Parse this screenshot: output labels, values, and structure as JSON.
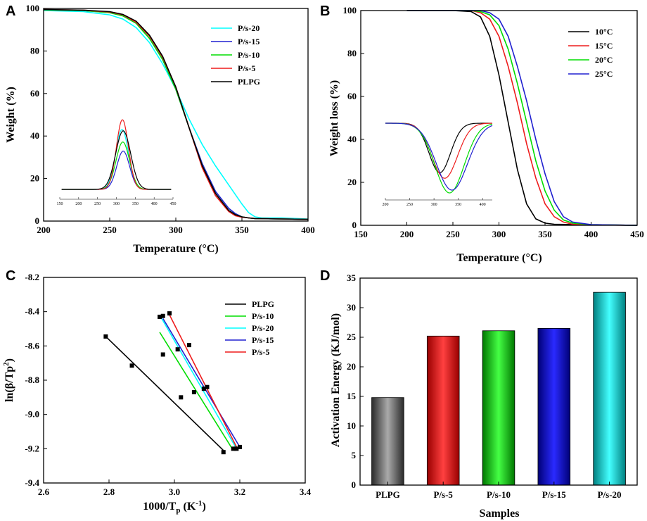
{
  "colors": {
    "cyan": "#00ffff",
    "blue": "#2020d0",
    "green": "#00dd00",
    "red": "#ee1c1c",
    "black": "#000000"
  },
  "chart_data": [
    {
      "panel": "A",
      "type": "line",
      "xlabel": "Temperature (°C)",
      "ylabel": "Weight  (%)",
      "xlim": [
        200,
        400
      ],
      "ylim": [
        0,
        100
      ],
      "xticks": [
        200,
        250,
        300,
        350,
        400
      ],
      "yticks": [
        0,
        20,
        40,
        60,
        80,
        100
      ],
      "legend": "top-right",
      "series": [
        {
          "name": "P/s-20",
          "color": "#00ffff",
          "x": [
            200,
            230,
            250,
            260,
            270,
            280,
            290,
            300,
            310,
            320,
            330,
            340,
            350,
            355,
            360,
            365,
            380,
            400
          ],
          "y": [
            99,
            98.5,
            97,
            95,
            91,
            84,
            74,
            62,
            48,
            36,
            26,
            17,
            8,
            4,
            2,
            1.5,
            1.5,
            1
          ]
        },
        {
          "name": "P/s-15",
          "color": "#2020d0",
          "x": [
            200,
            230,
            250,
            260,
            270,
            280,
            290,
            300,
            310,
            320,
            330,
            340,
            345,
            350,
            355,
            360,
            380,
            400
          ],
          "y": [
            99.3,
            99,
            98,
            96.5,
            93,
            86,
            76,
            62,
            44,
            27,
            14,
            6,
            3.5,
            2,
            1.5,
            1.2,
            1,
            0.8
          ]
        },
        {
          "name": "P/s-10",
          "color": "#00dd00",
          "x": [
            200,
            230,
            250,
            260,
            270,
            280,
            290,
            300,
            310,
            320,
            330,
            340,
            345,
            350,
            355,
            360,
            380,
            400
          ],
          "y": [
            99.3,
            99,
            98,
            96.5,
            93,
            86,
            76,
            62,
            44,
            26,
            13,
            5,
            3,
            2,
            1.5,
            1.2,
            1,
            0.8
          ]
        },
        {
          "name": "P/s-5",
          "color": "#ee1c1c",
          "x": [
            200,
            230,
            250,
            260,
            270,
            280,
            290,
            300,
            310,
            320,
            330,
            340,
            345,
            350,
            355,
            360,
            380,
            400
          ],
          "y": [
            99.5,
            99.2,
            98.3,
            97,
            93.5,
            87,
            77,
            63,
            44,
            25,
            12,
            4.5,
            2.5,
            1.8,
            1.5,
            1.2,
            1,
            0.8
          ]
        },
        {
          "name": "PLPG",
          "color": "#000000",
          "x": [
            200,
            230,
            250,
            260,
            270,
            280,
            290,
            300,
            310,
            320,
            330,
            340,
            345,
            350,
            355,
            360,
            380,
            400
          ],
          "y": [
            99.5,
            99.2,
            98.5,
            97.2,
            94,
            87.5,
            77.5,
            63,
            44,
            26,
            13,
            5,
            3,
            2,
            1.5,
            1.2,
            1,
            0.8
          ]
        }
      ],
      "inset": {
        "xlim": [
          150,
          450
        ],
        "xticks": [
          150,
          200,
          250,
          300,
          350,
          400,
          450
        ],
        "series": [
          {
            "name": "P/s-20",
            "color": "#00ffff",
            "center": 315,
            "width": 17,
            "peak": 0.86
          },
          {
            "name": "P/s-15",
            "color": "#2020d0",
            "center": 318,
            "width": 17,
            "peak": 0.55
          },
          {
            "name": "P/s-10",
            "color": "#00dd00",
            "center": 317,
            "width": 18,
            "peak": 0.68
          },
          {
            "name": "P/s-5",
            "color": "#ee1c1c",
            "center": 316,
            "width": 16,
            "peak": 1.0
          },
          {
            "name": "PLPG",
            "color": "#000000",
            "center": 318,
            "width": 20,
            "peak": 0.84
          }
        ]
      }
    },
    {
      "panel": "B",
      "type": "line",
      "xlabel": "Temperature (°C)",
      "ylabel": "Weight loss (%)",
      "xlim": [
        150,
        450
      ],
      "ylim": [
        0,
        100
      ],
      "xticks": [
        150,
        200,
        250,
        300,
        350,
        400,
        450
      ],
      "yticks": [
        0,
        20,
        40,
        60,
        80,
        100
      ],
      "legend": "top-right",
      "series": [
        {
          "name": "10°C",
          "color": "#000000",
          "x": [
            200,
            250,
            270,
            280,
            290,
            300,
            310,
            320,
            330,
            340,
            350,
            360,
            400,
            450
          ],
          "y": [
            100,
            100,
            99.5,
            97,
            88,
            70,
            48,
            26,
            10,
            3,
            1,
            0.5,
            0.2,
            0
          ]
        },
        {
          "name": "15°C",
          "color": "#ee1c1c",
          "x": [
            200,
            250,
            270,
            280,
            290,
            300,
            310,
            320,
            330,
            340,
            350,
            360,
            370,
            380,
            400,
            450
          ],
          "y": [
            100,
            100,
            100,
            99,
            96,
            88,
            74,
            57,
            38,
            22,
            10,
            4,
            1.5,
            0.5,
            0.2,
            0
          ]
        },
        {
          "name": "20°C",
          "color": "#00dd00",
          "x": [
            200,
            250,
            270,
            280,
            290,
            300,
            310,
            320,
            330,
            340,
            350,
            360,
            370,
            380,
            400,
            450
          ],
          "y": [
            100,
            100,
            100,
            99.5,
            98,
            93,
            82,
            66,
            48,
            30,
            16,
            7,
            2.5,
            1,
            0.3,
            0
          ]
        },
        {
          "name": "25°C",
          "color": "#2020d0",
          "x": [
            200,
            250,
            270,
            280,
            290,
            300,
            310,
            320,
            330,
            340,
            350,
            360,
            370,
            380,
            400,
            450
          ],
          "y": [
            100,
            100,
            100,
            100,
            99,
            96,
            88,
            74,
            58,
            40,
            24,
            11,
            4,
            1.5,
            0.3,
            0
          ]
        }
      ],
      "inset": {
        "xlim": [
          200,
          420
        ],
        "xticks": [
          200,
          250,
          300,
          350,
          400
        ],
        "series": [
          {
            "name": "10°C",
            "color": "#000000",
            "center": 312,
            "width": 22,
            "depth": 0.71
          },
          {
            "name": "15°C",
            "color": "#ee1c1c",
            "center": 322,
            "width": 26,
            "depth": 0.79
          },
          {
            "name": "20°C",
            "color": "#00dd00",
            "center": 332,
            "width": 30,
            "depth": 1.0
          },
          {
            "name": "25°C",
            "color": "#2020d0",
            "center": 337,
            "width": 32,
            "depth": 0.96
          }
        ]
      }
    },
    {
      "panel": "C",
      "type": "scatter",
      "xlabel": "1000/Tp (K-1)",
      "ylabel": "ln(β/Tp2)",
      "xlim": [
        2.6,
        3.4
      ],
      "ylim": [
        -9.4,
        -8.2
      ],
      "xticks": [
        2.6,
        2.8,
        3.0,
        3.2,
        3.4
      ],
      "yticks": [
        -9.4,
        -9.2,
        -9.0,
        -8.8,
        -8.6,
        -8.4,
        -8.2
      ],
      "legend": "top-right",
      "series": [
        {
          "name": "PLPG",
          "color": "#000000",
          "points": [
            [
              2.79,
              -8.545
            ],
            [
              2.87,
              -8.715
            ],
            [
              3.02,
              -8.9
            ],
            [
              3.15,
              -9.22
            ]
          ],
          "fit": [
            [
              2.79,
              -8.545
            ],
            [
              3.15,
              -9.21
            ]
          ]
        },
        {
          "name": "P/s-10",
          "color": "#00dd00",
          "points": [
            [
              2.965,
              -8.65
            ],
            [
              3.06,
              -8.87
            ],
            [
              3.18,
              -9.2
            ]
          ],
          "fit": [
            [
              2.955,
              -8.52
            ],
            [
              3.18,
              -9.21
            ]
          ]
        },
        {
          "name": "P/s-20",
          "color": "#00ffff",
          "points": [
            [
              2.955,
              -8.43
            ],
            [
              3.01,
              -8.62
            ],
            [
              3.19,
              -9.2
            ]
          ],
          "fit": [
            [
              2.955,
              -8.42
            ],
            [
              3.19,
              -9.2
            ]
          ]
        },
        {
          "name": "P/s-15",
          "color": "#2020d0",
          "points": [
            [
              2.965,
              -8.425
            ],
            [
              3.09,
              -8.85
            ],
            [
              3.2,
              -9.19
            ]
          ],
          "fit": [
            [
              2.965,
              -8.44
            ],
            [
              3.2,
              -9.19
            ]
          ]
        },
        {
          "name": "P/s-5",
          "color": "#ee1c1c",
          "points": [
            [
              2.985,
              -8.41
            ],
            [
              3.045,
              -8.595
            ],
            [
              3.1,
              -8.84
            ]
          ],
          "fit": [
            [
              2.98,
              -8.4
            ],
            [
              3.19,
              -9.19
            ]
          ]
        }
      ]
    },
    {
      "panel": "D",
      "type": "bar",
      "xlabel": "Samples",
      "ylabel": "Activation Energy (KJ/mol)",
      "ylim": [
        0,
        35
      ],
      "yticks": [
        0,
        5,
        10,
        15,
        20,
        25,
        30,
        35
      ],
      "categories": [
        "PLPG",
        "P/s-5",
        "P/s-10",
        "P/s-15",
        "P/s-20"
      ],
      "values": [
        14.8,
        25.2,
        26.1,
        26.5,
        32.6
      ],
      "colors": [
        "#555555",
        "#ee0000",
        "#00cc00",
        "#1010cc",
        "#00cccc"
      ]
    }
  ]
}
